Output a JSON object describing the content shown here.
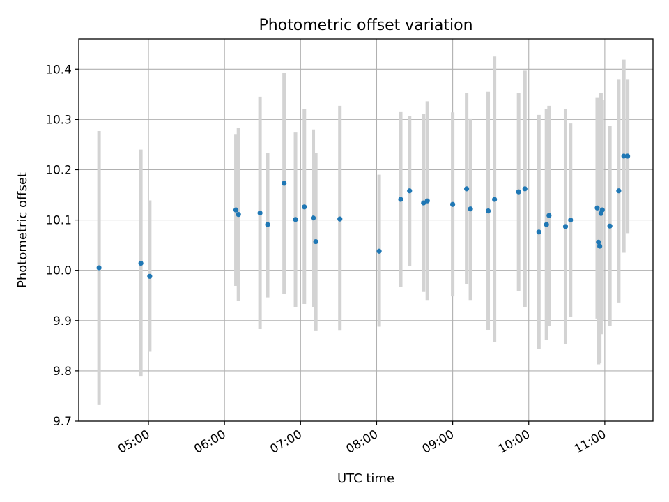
{
  "chart_data": {
    "type": "scatter",
    "title": "Photometric offset variation",
    "xlabel": "UTC time",
    "ylabel": "Photometric offset",
    "grid": true,
    "ylim": [
      9.7,
      10.46
    ],
    "xlim": [
      "04:05",
      "11:38"
    ],
    "x_ticks": [
      "05:00",
      "06:00",
      "07:00",
      "08:00",
      "09:00",
      "10:00",
      "11:00"
    ],
    "y_ticks": [
      "9.7",
      "9.8",
      "9.9",
      "10.0",
      "10.1",
      "10.2",
      "10.3",
      "10.4"
    ],
    "marker_color": "#1f77b4",
    "errorbar_color": "#d3d3d3",
    "points": [
      {
        "x": "04:21",
        "y": 10.005,
        "ylow": 9.732,
        "yhigh": 10.277
      },
      {
        "x": "04:54",
        "y": 10.014,
        "ylow": 9.79,
        "yhigh": 10.24
      },
      {
        "x": "05:01",
        "y": 9.988,
        "ylow": 9.838,
        "yhigh": 10.139
      },
      {
        "x": "06:09",
        "y": 10.12,
        "ylow": 9.969,
        "yhigh": 10.271
      },
      {
        "x": "06:11",
        "y": 10.111,
        "ylow": 9.94,
        "yhigh": 10.283
      },
      {
        "x": "06:28",
        "y": 10.114,
        "ylow": 9.883,
        "yhigh": 10.345
      },
      {
        "x": "06:34",
        "y": 10.091,
        "ylow": 9.946,
        "yhigh": 10.234
      },
      {
        "x": "06:47",
        "y": 10.173,
        "ylow": 9.953,
        "yhigh": 10.392
      },
      {
        "x": "06:56",
        "y": 10.101,
        "ylow": 9.927,
        "yhigh": 10.274
      },
      {
        "x": "07:03",
        "y": 10.126,
        "ylow": 9.933,
        "yhigh": 10.32
      },
      {
        "x": "07:10",
        "y": 10.104,
        "ylow": 9.927,
        "yhigh": 10.28
      },
      {
        "x": "07:12",
        "y": 10.057,
        "ylow": 9.879,
        "yhigh": 10.234
      },
      {
        "x": "07:31",
        "y": 10.102,
        "ylow": 9.88,
        "yhigh": 10.327
      },
      {
        "x": "08:02",
        "y": 10.038,
        "ylow": 9.888,
        "yhigh": 10.19
      },
      {
        "x": "08:19",
        "y": 10.141,
        "ylow": 9.967,
        "yhigh": 10.316
      },
      {
        "x": "08:26",
        "y": 10.158,
        "ylow": 10.009,
        "yhigh": 10.306
      },
      {
        "x": "08:37",
        "y": 10.134,
        "ylow": 9.957,
        "yhigh": 10.311
      },
      {
        "x": "08:40",
        "y": 10.138,
        "ylow": 9.941,
        "yhigh": 10.336
      },
      {
        "x": "09:00",
        "y": 10.131,
        "ylow": 9.948,
        "yhigh": 10.314
      },
      {
        "x": "09:11",
        "y": 10.162,
        "ylow": 9.973,
        "yhigh": 10.352
      },
      {
        "x": "09:14",
        "y": 10.122,
        "ylow": 9.941,
        "yhigh": 10.302
      },
      {
        "x": "09:28",
        "y": 10.118,
        "ylow": 9.881,
        "yhigh": 10.355
      },
      {
        "x": "09:33",
        "y": 10.141,
        "ylow": 9.857,
        "yhigh": 10.425
      },
      {
        "x": "09:52",
        "y": 10.156,
        "ylow": 9.959,
        "yhigh": 10.353
      },
      {
        "x": "09:57",
        "y": 10.162,
        "ylow": 9.927,
        "yhigh": 10.397
      },
      {
        "x": "10:08",
        "y": 10.076,
        "ylow": 9.843,
        "yhigh": 10.309
      },
      {
        "x": "10:14",
        "y": 10.091,
        "ylow": 9.861,
        "yhigh": 10.321
      },
      {
        "x": "10:16",
        "y": 10.109,
        "ylow": 9.89,
        "yhigh": 10.327
      },
      {
        "x": "10:29",
        "y": 10.087,
        "ylow": 9.853,
        "yhigh": 10.32
      },
      {
        "x": "10:33",
        "y": 10.1,
        "ylow": 9.908,
        "yhigh": 10.292
      },
      {
        "x": "10:54",
        "y": 10.124,
        "ylow": 9.904,
        "yhigh": 10.344
      },
      {
        "x": "10:55",
        "y": 10.056,
        "ylow": 9.813,
        "yhigh": 10.3
      },
      {
        "x": "10:56",
        "y": 10.048,
        "ylow": 9.816,
        "yhigh": 10.281
      },
      {
        "x": "10:57",
        "y": 10.113,
        "ylow": 9.873,
        "yhigh": 10.353
      },
      {
        "x": "10:58",
        "y": 10.12,
        "ylow": 9.9,
        "yhigh": 10.339
      },
      {
        "x": "11:04",
        "y": 10.088,
        "ylow": 9.889,
        "yhigh": 10.287
      },
      {
        "x": "11:11",
        "y": 10.158,
        "ylow": 9.936,
        "yhigh": 10.379
      },
      {
        "x": "11:15",
        "y": 10.227,
        "ylow": 10.035,
        "yhigh": 10.419
      },
      {
        "x": "11:18",
        "y": 10.227,
        "ylow": 10.074,
        "yhigh": 10.379
      }
    ]
  }
}
